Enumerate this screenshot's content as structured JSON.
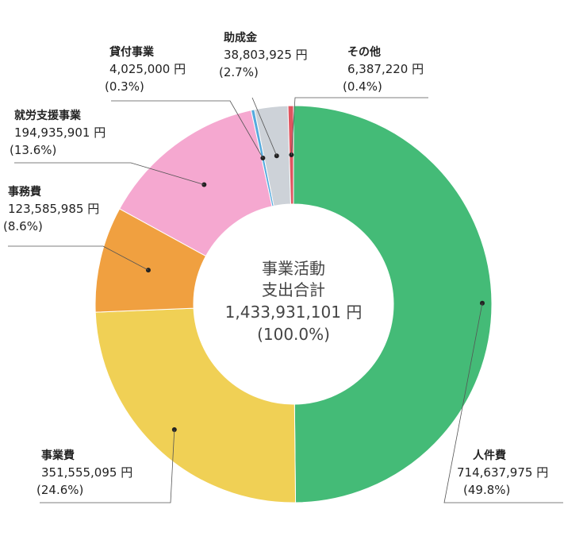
{
  "chart_data": {
    "type": "donut",
    "center": {
      "line1": "事業活動",
      "line2": "支出合計",
      "line3": "1,433,931,101 円",
      "line4": "(100.0%)"
    },
    "slices": [
      {
        "name": "人件費",
        "value_text": "714,637,975 円",
        "percent_text": "(49.8%)",
        "value": 714637975,
        "color": "#44bb77"
      },
      {
        "name": "事業費",
        "value_text": "351,555,095 円",
        "percent_text": "(24.6%)",
        "value": 351555095,
        "color": "#f0d055"
      },
      {
        "name": "事務費",
        "value_text": "123,585,985 円",
        "percent_text": "(8.6%)",
        "value": 123585985,
        "color": "#f0a040"
      },
      {
        "name": "就労支援事業",
        "value_text": "194,935,901 円",
        "percent_text": "(13.6%)",
        "value": 194935901,
        "color": "#f5a8d0"
      },
      {
        "name": "貸付事業",
        "value_text": "4,025,000 円",
        "percent_text": "(0.3%)",
        "value": 4025000,
        "color": "#55aadd"
      },
      {
        "name": "助成金",
        "value_text": "38,803,925 円",
        "percent_text": "(2.7%)",
        "value": 38803925,
        "color": "#cdd2d8"
      },
      {
        "name": "その他",
        "value_text": "6,387,220 円",
        "percent_text": "(0.4%)",
        "value": 6387220,
        "color": "#e05560"
      }
    ]
  }
}
